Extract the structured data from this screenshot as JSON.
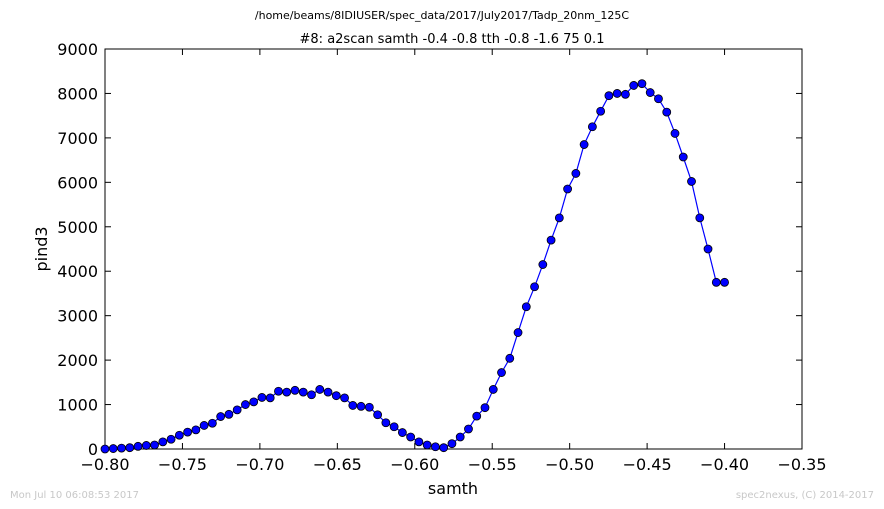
{
  "chart_data": {
    "type": "line",
    "title": "#8: a2scan  samth -0.4 -0.8  tth -0.8 -1.6  75 0.1",
    "subtitle": "/home/beams/8IDIUSER/spec_data/2017/July2017/Tadp_20nm_125C",
    "xlabel": "samth",
    "ylabel": "pind3",
    "xlim": [
      -0.8,
      -0.35
    ],
    "ylim": [
      0,
      9000
    ],
    "xticks": [
      "−0.80",
      "−0.75",
      "−0.70",
      "−0.65",
      "−0.60",
      "−0.55",
      "−0.50",
      "−0.45",
      "−0.40",
      "−0.35"
    ],
    "yticks": [
      "0",
      "1000",
      "2000",
      "3000",
      "4000",
      "5000",
      "6000",
      "7000",
      "8000",
      "9000"
    ],
    "grid": false,
    "series": [
      {
        "color": "#0000ff",
        "marker": "circle",
        "x": [
          -0.8,
          -0.79467,
          -0.78933,
          -0.784,
          -0.77867,
          -0.77333,
          -0.768,
          -0.76267,
          -0.75733,
          -0.752,
          -0.74667,
          -0.74133,
          -0.736,
          -0.73067,
          -0.72533,
          -0.72,
          -0.71467,
          -0.70933,
          -0.704,
          -0.69867,
          -0.69333,
          -0.688,
          -0.68267,
          -0.67733,
          -0.672,
          -0.66667,
          -0.66133,
          -0.656,
          -0.65067,
          -0.64533,
          -0.64,
          -0.63467,
          -0.62933,
          -0.624,
          -0.61867,
          -0.61333,
          -0.608,
          -0.60267,
          -0.59733,
          -0.592,
          -0.58667,
          -0.58133,
          -0.576,
          -0.57067,
          -0.56533,
          -0.56,
          -0.55467,
          -0.54933,
          -0.544,
          -0.53867,
          -0.53333,
          -0.528,
          -0.52267,
          -0.51733,
          -0.512,
          -0.50667,
          -0.50133,
          -0.496,
          -0.49067,
          -0.48533,
          -0.48,
          -0.47467,
          -0.46933,
          -0.464,
          -0.45867,
          -0.45333,
          -0.448,
          -0.44267,
          -0.43733,
          -0.432,
          -0.42667,
          -0.42133,
          -0.416,
          -0.41067,
          -0.40533,
          -0.4
        ],
        "y": [
          0,
          10,
          20,
          30,
          60,
          80,
          90,
          160,
          220,
          310,
          380,
          430,
          530,
          580,
          730,
          780,
          880,
          1000,
          1060,
          1160,
          1150,
          1300,
          1280,
          1320,
          1280,
          1220,
          1340,
          1280,
          1200,
          1150,
          980,
          960,
          940,
          770,
          590,
          500,
          370,
          270,
          160,
          90,
          50,
          30,
          120,
          270,
          450,
          740,
          930,
          1340,
          1720,
          2040,
          2620,
          3200,
          3650,
          4150,
          4700,
          5200,
          5850,
          6200,
          6850,
          7250,
          7600,
          7950,
          8000,
          7980,
          8180,
          8220,
          8020,
          7880,
          7580,
          7100,
          6570,
          6020,
          5200,
          4500,
          3750,
          3750
        ]
      }
    ]
  },
  "footer": {
    "left": "Mon Jul 10 06:08:53 2017",
    "right": "spec2nexus, (C) 2014-2017"
  }
}
